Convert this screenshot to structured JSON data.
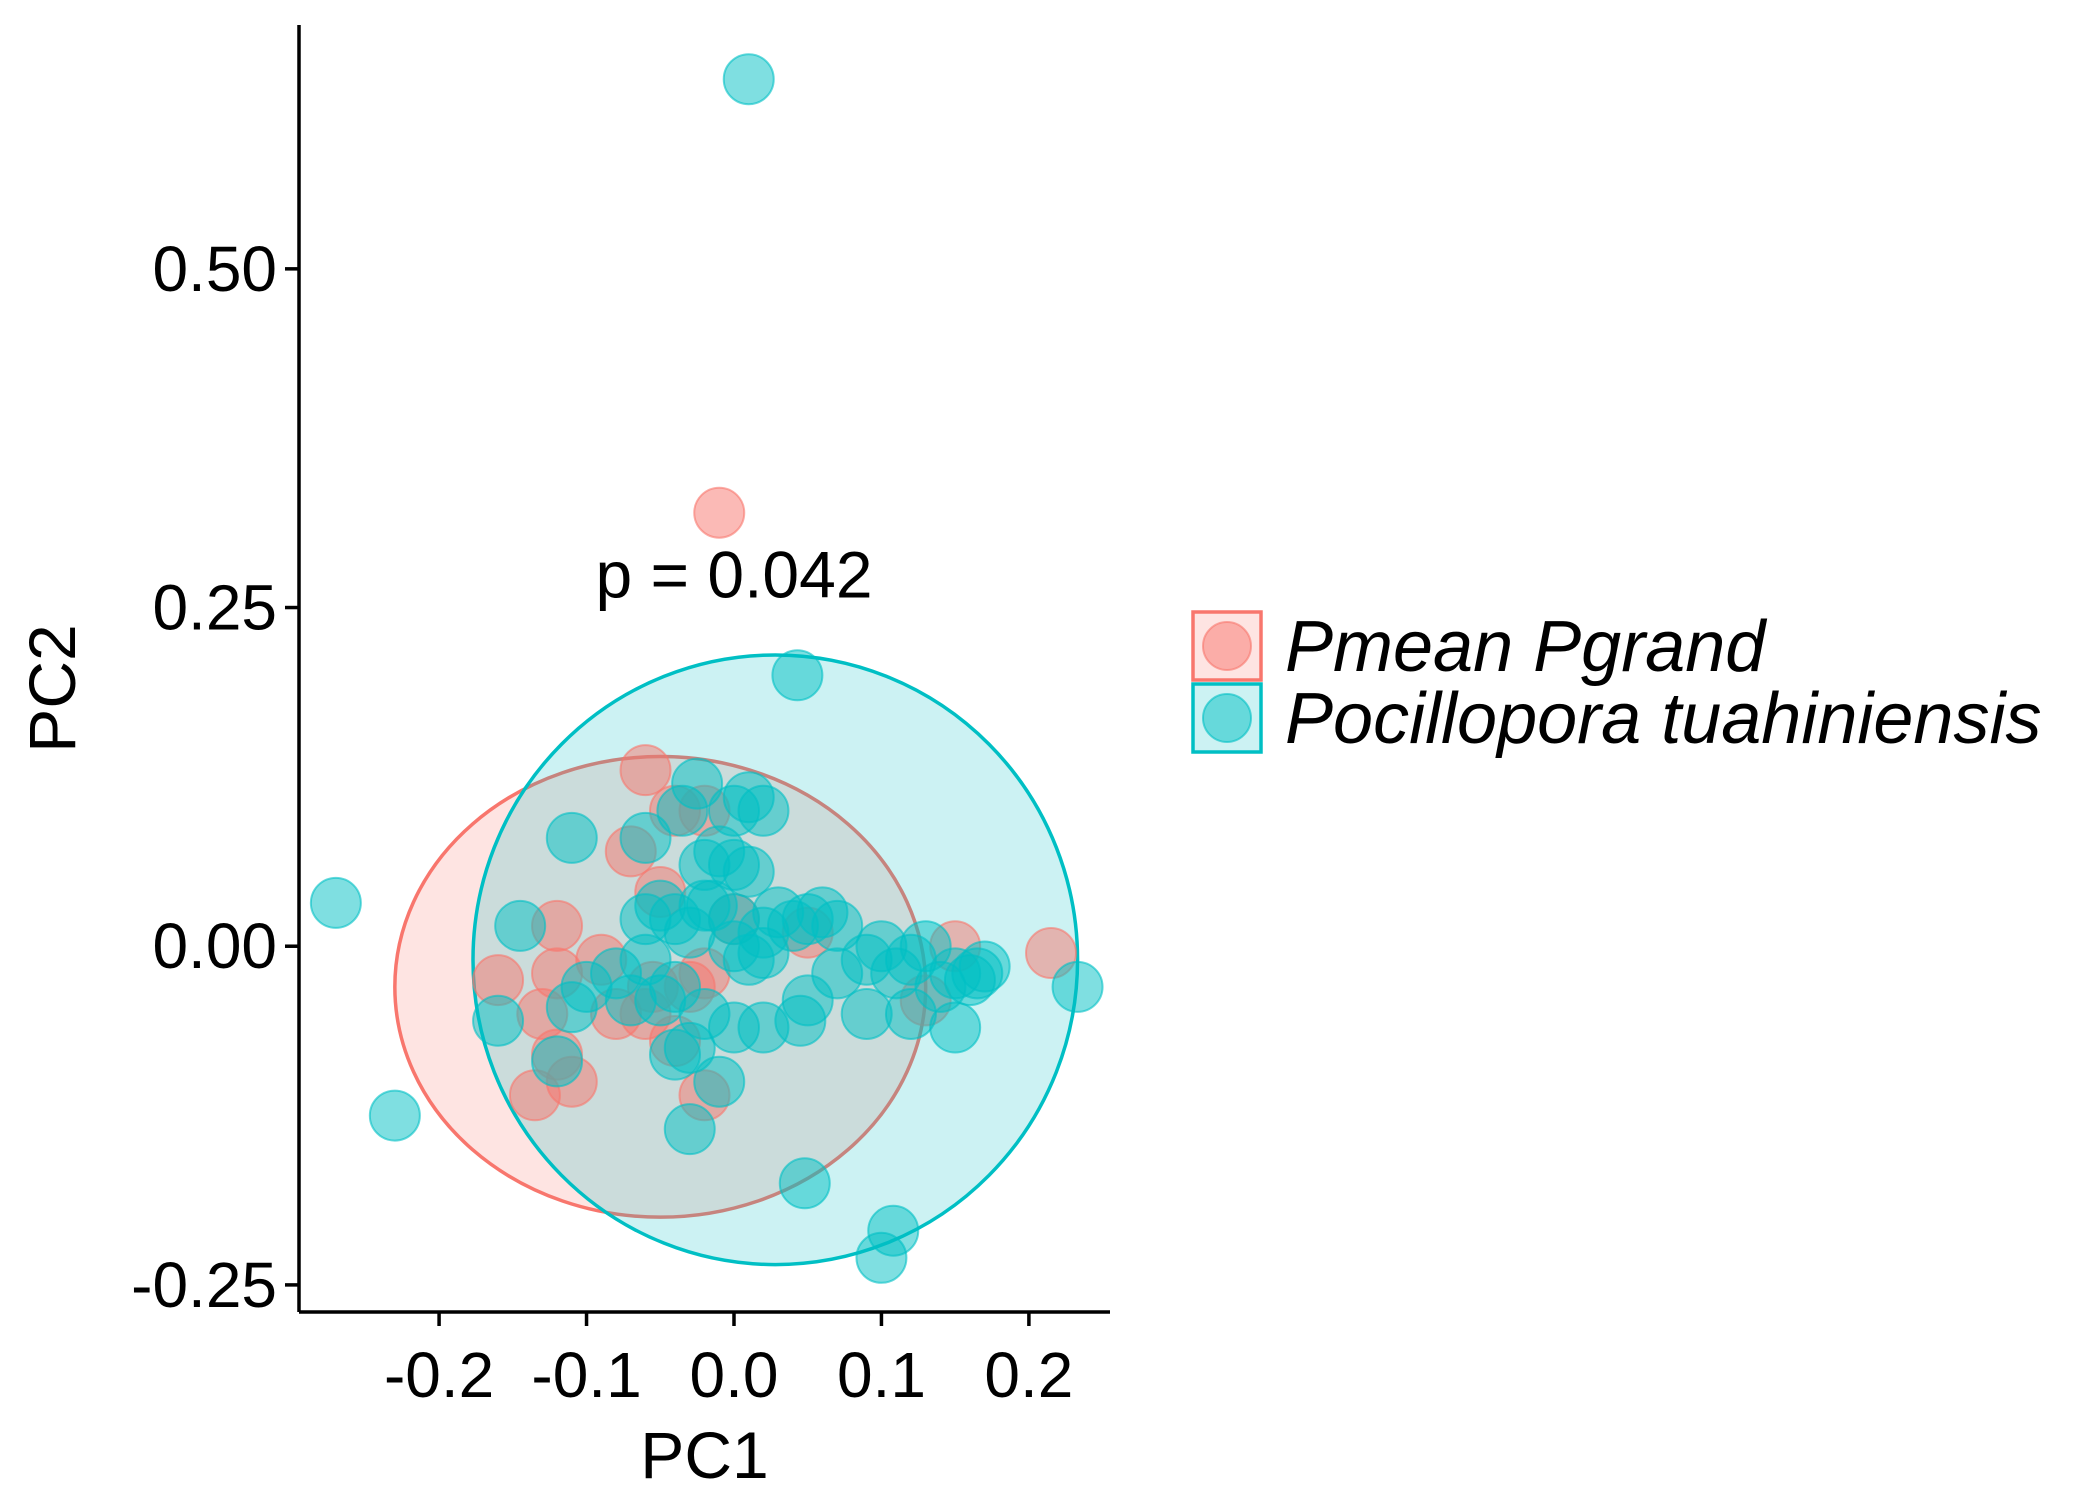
{
  "chart_data": {
    "type": "scatter",
    "xlabel": "PC1",
    "ylabel": "PC2",
    "xlim": [
      -0.295,
      0.255
    ],
    "ylim": [
      -0.27,
      0.68
    ],
    "x_ticks": [
      -0.2,
      -0.1,
      0.0,
      0.1,
      0.2
    ],
    "x_tick_labels": [
      "-0.2",
      "-0.1",
      "0.0",
      "0.1",
      "0.2"
    ],
    "y_ticks": [
      -0.25,
      0.0,
      0.25,
      0.5
    ],
    "y_tick_labels": [
      "-0.25",
      "0.00",
      "0.25",
      "0.50"
    ],
    "grid": false,
    "legend_position": "right",
    "annotation": {
      "text": "p = 0.042",
      "x": 0.0,
      "y": 0.275
    },
    "series": [
      {
        "name": "Pmean Pgrand",
        "color": "#F8766D",
        "ellipse": {
          "cx": -0.05,
          "cy": -0.03,
          "rx": 0.18,
          "ry": 0.17
        },
        "points": [
          [
            -0.01,
            0.32
          ],
          [
            -0.06,
            0.13
          ],
          [
            -0.04,
            0.1
          ],
          [
            -0.07,
            0.07
          ],
          [
            -0.05,
            0.04
          ],
          [
            -0.12,
            0.015
          ],
          [
            -0.16,
            -0.025
          ],
          [
            -0.12,
            -0.02
          ],
          [
            -0.09,
            -0.01
          ],
          [
            -0.13,
            -0.05
          ],
          [
            -0.06,
            -0.05
          ],
          [
            -0.03,
            -0.03
          ],
          [
            -0.02,
            -0.02
          ],
          [
            -0.04,
            -0.07
          ],
          [
            -0.12,
            -0.08
          ],
          [
            -0.11,
            -0.1
          ],
          [
            -0.135,
            -0.11
          ],
          [
            -0.02,
            -0.11
          ],
          [
            0.0,
            0.02
          ],
          [
            0.05,
            0.01
          ],
          [
            0.15,
            0.0
          ],
          [
            0.13,
            -0.04
          ],
          [
            0.215,
            -0.005
          ],
          [
            -0.02,
            0.1
          ],
          [
            -0.08,
            -0.05
          ],
          [
            -0.055,
            -0.03
          ]
        ]
      },
      {
        "name": "Pocillopora tuahiniensis",
        "color": "#00BFC4",
        "ellipse": {
          "cx": 0.028,
          "cy": -0.01,
          "rx": 0.205,
          "ry": 0.225
        },
        "points": [
          [
            0.01,
            0.64
          ],
          [
            0.043,
            0.2
          ],
          [
            -0.27,
            0.032
          ],
          [
            -0.23,
            -0.125
          ],
          [
            0.048,
            -0.175
          ],
          [
            0.108,
            -0.21
          ],
          [
            0.1,
            -0.23
          ],
          [
            0.233,
            -0.03
          ],
          [
            -0.025,
            0.12
          ],
          [
            0.0,
            0.1
          ],
          [
            0.01,
            0.11
          ],
          [
            0.02,
            0.1
          ],
          [
            -0.035,
            0.1
          ],
          [
            -0.06,
            0.08
          ],
          [
            -0.11,
            0.08
          ],
          [
            -0.02,
            0.06
          ],
          [
            -0.01,
            0.07
          ],
          [
            0.0,
            0.06
          ],
          [
            0.01,
            0.055
          ],
          [
            -0.06,
            0.02
          ],
          [
            -0.05,
            0.03
          ],
          [
            -0.04,
            0.02
          ],
          [
            -0.03,
            0.01
          ],
          [
            -0.02,
            0.03
          ],
          [
            0.0,
            0.02
          ],
          [
            0.02,
            0.01
          ],
          [
            0.03,
            0.025
          ],
          [
            0.04,
            0.015
          ],
          [
            0.05,
            0.02
          ],
          [
            0.06,
            0.025
          ],
          [
            0.07,
            0.015
          ],
          [
            0.0,
            0.0
          ],
          [
            0.02,
            -0.005
          ],
          [
            -0.145,
            0.015
          ],
          [
            -0.1,
            -0.03
          ],
          [
            -0.08,
            -0.02
          ],
          [
            -0.07,
            -0.04
          ],
          [
            -0.06,
            -0.01
          ],
          [
            -0.05,
            -0.04
          ],
          [
            -0.04,
            -0.03
          ],
          [
            -0.02,
            -0.05
          ],
          [
            0.0,
            -0.06
          ],
          [
            0.02,
            -0.06
          ],
          [
            0.045,
            -0.055
          ],
          [
            0.05,
            -0.04
          ],
          [
            0.07,
            -0.02
          ],
          [
            0.09,
            -0.01
          ],
          [
            0.1,
            0.0
          ],
          [
            0.11,
            -0.02
          ],
          [
            0.12,
            -0.01
          ],
          [
            0.13,
            0.0
          ],
          [
            0.14,
            -0.03
          ],
          [
            0.15,
            -0.02
          ],
          [
            0.16,
            -0.025
          ],
          [
            0.165,
            -0.02
          ],
          [
            0.17,
            -0.015
          ],
          [
            0.15,
            -0.06
          ],
          [
            0.12,
            -0.05
          ],
          [
            0.09,
            -0.05
          ],
          [
            -0.16,
            -0.055
          ],
          [
            -0.11,
            -0.045
          ],
          [
            -0.12,
            -0.085
          ],
          [
            -0.04,
            -0.08
          ],
          [
            -0.03,
            -0.075
          ],
          [
            -0.01,
            -0.1
          ],
          [
            -0.03,
            -0.135
          ],
          [
            0.01,
            -0.01
          ],
          [
            -0.015,
            0.03
          ]
        ]
      }
    ]
  }
}
